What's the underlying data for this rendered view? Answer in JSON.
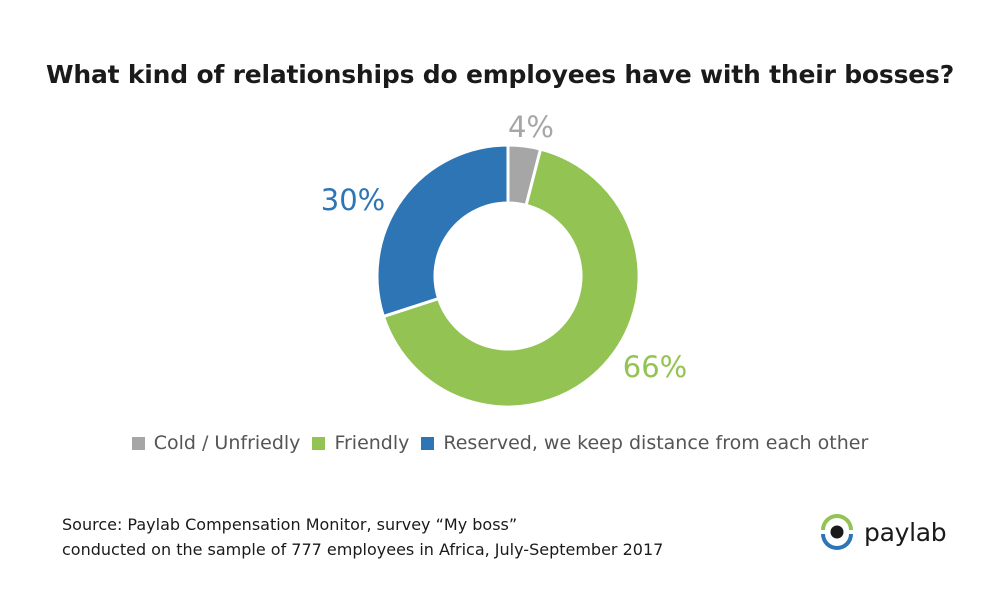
{
  "chart_data": {
    "type": "pie",
    "title": "What kind of relationships do employees have with their bosses?",
    "categories": [
      "Cold / Unfriedly",
      "Friendly",
      "Reserved, we keep distance from each other"
    ],
    "values": [
      4,
      66,
      30
    ],
    "value_labels": [
      "4%",
      "66%",
      "30%"
    ],
    "unit": "%",
    "donut": true,
    "colors": [
      "#a6a6a6",
      "#92c353",
      "#2e75b6"
    ],
    "legend_position": "bottom"
  },
  "source": {
    "line1": "Source: Paylab Compensation Monitor, survey “My boss”",
    "line2": "conducted on the sample of 777 employees in Africa, July-September 2017"
  },
  "logo": {
    "text": "paylab",
    "icon": "paylab-eye-icon",
    "colors": {
      "green": "#92c353",
      "blue": "#2e75b6",
      "dark": "#1a1a1a"
    }
  }
}
